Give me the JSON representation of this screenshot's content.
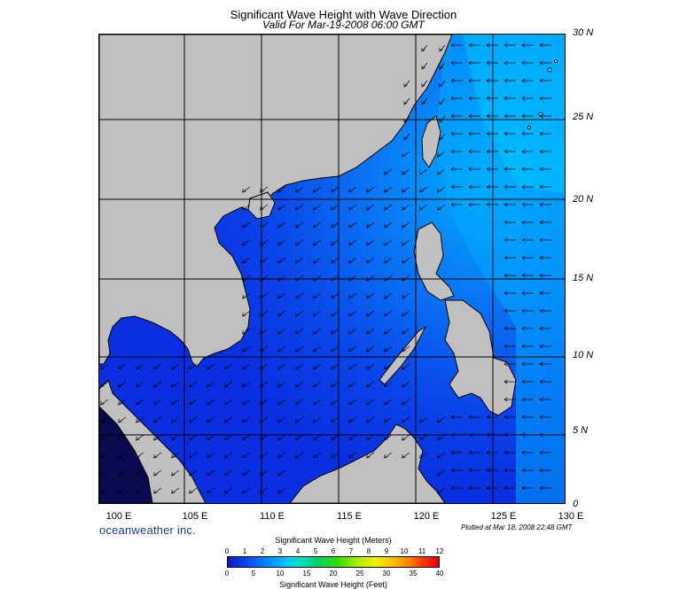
{
  "title": "Significant Wave Height with Wave Direction",
  "subtitle": "Valid For Mar-19-2008 06:00 GMT",
  "lat_labels": [
    "30 N",
    "25 N",
    "20 N",
    "15 N",
    "10 N",
    "5 N",
    "0"
  ],
  "lon_labels": [
    "100 E",
    "105 E",
    "110 E",
    "115 E",
    "120 E",
    "125 E",
    "130 E"
  ],
  "brand": "oceanweather inc.",
  "plotted": "Plotted at Mar 18, 2008 22:48 GMT",
  "legend": {
    "title_meters": "Significant Wave Height (Meters)",
    "title_feet": "Significant Wave Height (Feet)",
    "meter_ticks": [
      "0",
      "1",
      "2",
      "3",
      "4",
      "5",
      "6",
      "7",
      "8",
      "9",
      "10",
      "11",
      "12"
    ],
    "feet_ticks": [
      "0",
      "5",
      "10",
      "15",
      "20",
      "25",
      "30",
      "35",
      "40"
    ]
  },
  "colors": {
    "land": "#c0c0c0",
    "sea_low": "#0a2ee0",
    "sea_mid": "#0a5cf5",
    "sea_high": "#00b4ff",
    "grid": "#000000"
  },
  "map_extent": {
    "lon": [
      99,
      130
    ],
    "lat": [
      0,
      30
    ]
  }
}
